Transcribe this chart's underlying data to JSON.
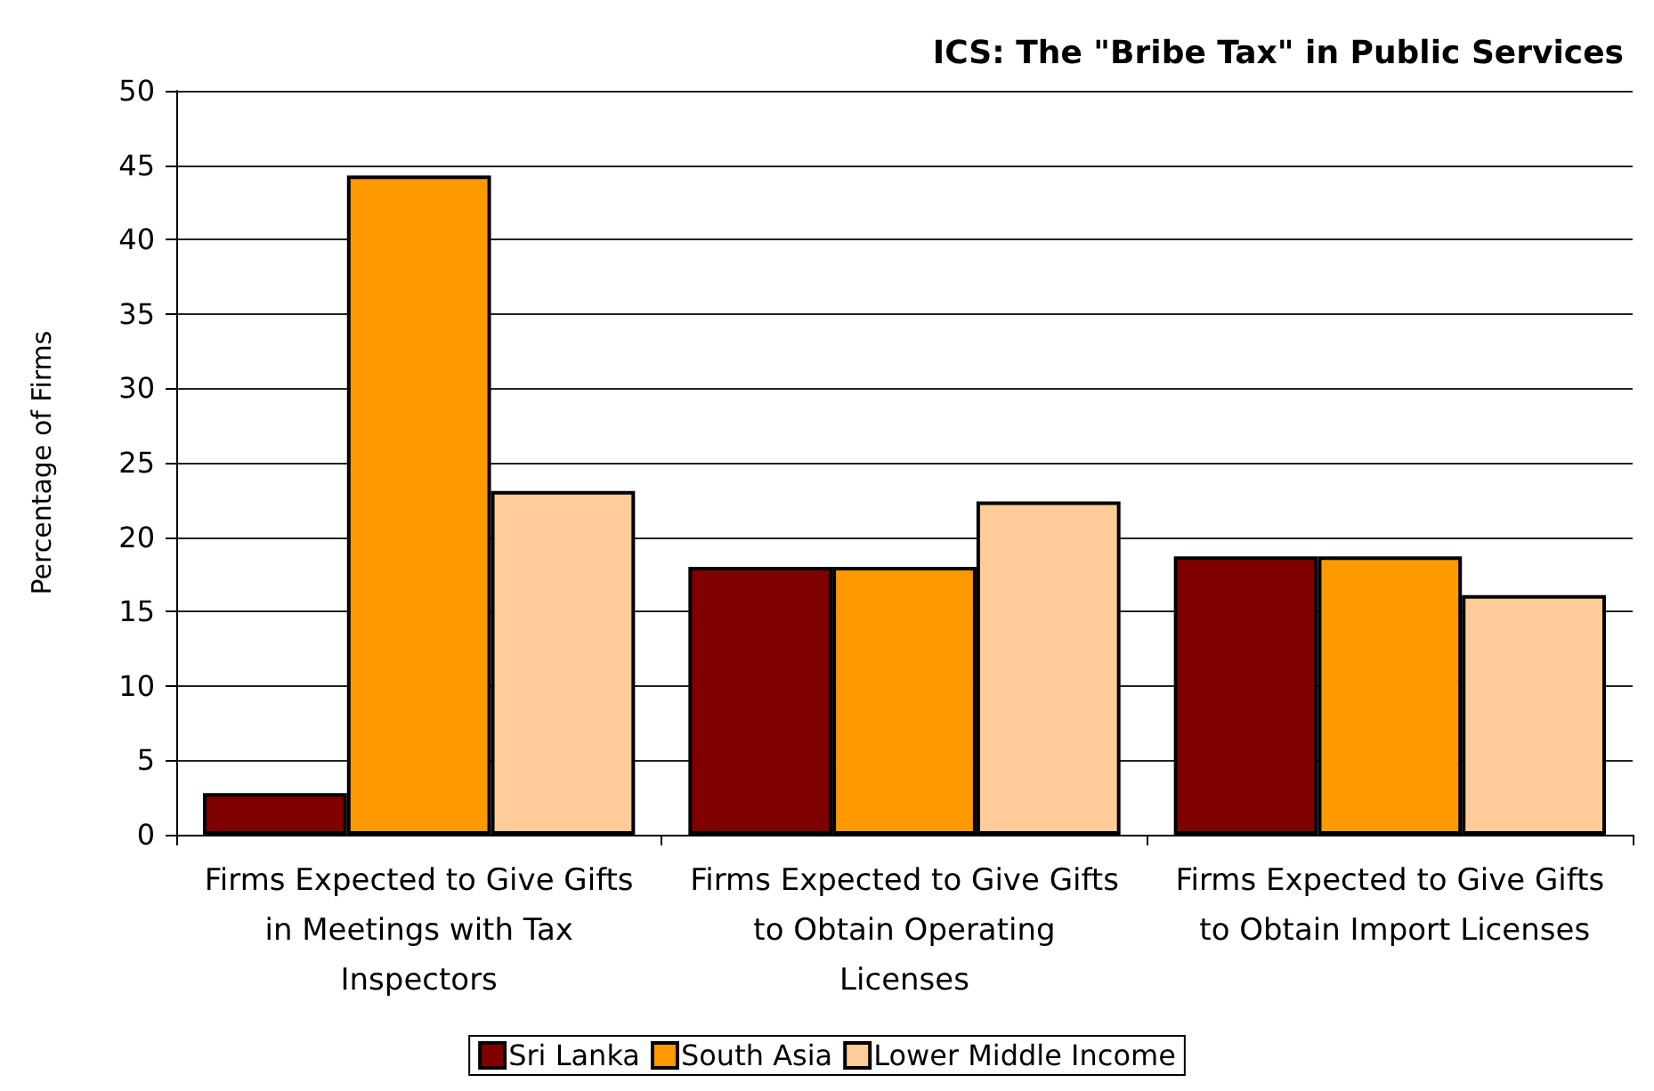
{
  "chart_data": {
    "type": "bar",
    "title": "ICS: The \"Bribe Tax\" in Public Services",
    "ylabel": "Percentage of Firms",
    "categories": [
      "Firms Expected to Give Gifts in Meetings with Tax Inspectors",
      "Firms Expected to Give Gifts to Obtain Operating Licenses",
      "Firms Expected to Give Gifts to Obtain Import Licenses"
    ],
    "series": [
      {
        "name": "Sri Lanka",
        "color": "#800000",
        "values": [
          2.8,
          18.0,
          18.7
        ]
      },
      {
        "name": "South Asia",
        "color": "#ff9900",
        "values": [
          44.3,
          18.0,
          18.7
        ]
      },
      {
        "name": "Lower Middle Income",
        "color": "#ffcc99",
        "values": [
          23.1,
          22.4,
          16.1
        ]
      }
    ],
    "ylim": [
      0,
      50
    ],
    "yticks": [
      0,
      5,
      10,
      15,
      20,
      25,
      30,
      35,
      40,
      45,
      50
    ],
    "grid": "y",
    "legend": "bottom"
  }
}
